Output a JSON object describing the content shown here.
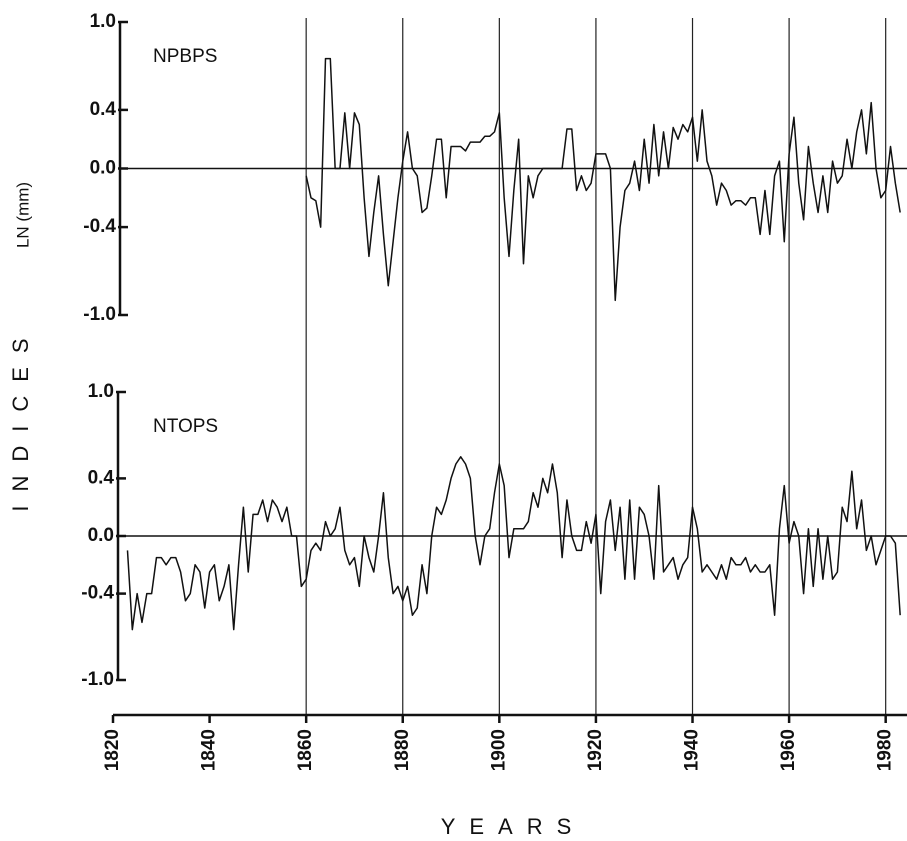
{
  "chart_data": [
    {
      "type": "line",
      "label": "NPBPS",
      "y_label": "LN (mm)",
      "xlim": [
        1820,
        1984
      ],
      "ylim": [
        -1,
        1
      ],
      "yticks": [
        {
          "value": -1,
          "label": "-1.0"
        },
        -0.4,
        {
          "value": 0,
          "label": "0.0"
        },
        0.4,
        {
          "value": 1,
          "label": "1.0"
        }
      ],
      "vlines": [
        1860,
        1880,
        1900,
        1920,
        1940,
        1960,
        1980
      ],
      "zero_line": true,
      "series": [
        {
          "name": "NPBPS",
          "color": "#111111",
          "x": [
            1860,
            1861,
            1862,
            1863,
            1864,
            1865,
            1866,
            1867,
            1868,
            1869,
            1870,
            1871,
            1872,
            1873,
            1874,
            1875,
            1876,
            1877,
            1878,
            1879,
            1880,
            1881,
            1882,
            1883,
            1884,
            1885,
            1886,
            1887,
            1888,
            1889,
            1890,
            1891,
            1892,
            1893,
            1894,
            1895,
            1896,
            1897,
            1898,
            1899,
            1900,
            1901,
            1902,
            1903,
            1904,
            1905,
            1906,
            1907,
            1908,
            1909,
            1910,
            1911,
            1912,
            1913,
            1914,
            1915,
            1916,
            1917,
            1918,
            1919,
            1920,
            1921,
            1922,
            1923,
            1924,
            1925,
            1926,
            1927,
            1928,
            1929,
            1930,
            1931,
            1932,
            1933,
            1934,
            1935,
            1936,
            1937,
            1938,
            1939,
            1940,
            1941,
            1942,
            1943,
            1944,
            1945,
            1946,
            1947,
            1948,
            1949,
            1950,
            1951,
            1952,
            1953,
            1954,
            1955,
            1956,
            1957,
            1958,
            1959,
            1960,
            1961,
            1962,
            1963,
            1964,
            1965,
            1966,
            1967,
            1968,
            1969,
            1970,
            1971,
            1972,
            1973,
            1974,
            1975,
            1976,
            1977,
            1978,
            1979,
            1980,
            1981,
            1982,
            1983
          ],
          "values": [
            -0.05,
            -0.2,
            -0.22,
            -0.4,
            0.75,
            0.75,
            0.0,
            0.0,
            0.38,
            0.0,
            0.38,
            0.3,
            -0.2,
            -0.6,
            -0.3,
            -0.05,
            -0.45,
            -0.8,
            -0.5,
            -0.2,
            0.05,
            0.25,
            0.0,
            -0.05,
            -0.3,
            -0.27,
            -0.05,
            0.2,
            0.2,
            -0.2,
            0.15,
            0.15,
            0.15,
            0.12,
            0.18,
            0.18,
            0.18,
            0.22,
            0.22,
            0.25,
            0.38,
            -0.2,
            -0.6,
            -0.15,
            0.2,
            -0.65,
            -0.05,
            -0.2,
            -0.05,
            0.0,
            0.0,
            0.0,
            0.0,
            0.0,
            0.27,
            0.27,
            -0.15,
            -0.05,
            -0.15,
            -0.1,
            0.1,
            0.1,
            0.1,
            0.0,
            -0.9,
            -0.4,
            -0.15,
            -0.1,
            0.05,
            -0.15,
            0.2,
            -0.1,
            0.3,
            -0.05,
            0.25,
            0.0,
            0.28,
            0.2,
            0.3,
            0.25,
            0.35,
            0.05,
            0.4,
            0.05,
            -0.05,
            -0.25,
            -0.1,
            -0.15,
            -0.25,
            -0.22,
            -0.22,
            -0.25,
            -0.2,
            -0.2,
            -0.45,
            -0.15,
            -0.45,
            -0.05,
            0.05,
            -0.5,
            0.1,
            0.35,
            -0.1,
            -0.35,
            0.15,
            -0.1,
            -0.3,
            -0.05,
            -0.3,
            0.05,
            -0.1,
            -0.05,
            0.2,
            0.0,
            0.25,
            0.4,
            0.1,
            0.45,
            0.0,
            -0.2,
            -0.15,
            0.15,
            -0.1,
            -0.3
          ]
        }
      ]
    },
    {
      "type": "line",
      "label": "NTOPS",
      "y_label": "INDICES",
      "x_label": "YEARS",
      "xlim": [
        1820,
        1984
      ],
      "ylim": [
        -1,
        1
      ],
      "xticks": [
        1820,
        1840,
        1860,
        1880,
        1900,
        1920,
        1940,
        1960,
        1980
      ],
      "yticks": [
        {
          "value": -1,
          "label": "-1.0"
        },
        -0.4,
        {
          "value": 0,
          "label": "0.0"
        },
        0.4,
        {
          "value": 1,
          "label": "1.0"
        }
      ],
      "zero_line": true,
      "series": [
        {
          "name": "NTOPS",
          "color": "#111111",
          "x": [
            1823,
            1824,
            1825,
            1826,
            1827,
            1828,
            1829,
            1830,
            1831,
            1832,
            1833,
            1834,
            1835,
            1836,
            1837,
            1838,
            1839,
            1840,
            1841,
            1842,
            1843,
            1844,
            1845,
            1846,
            1847,
            1848,
            1849,
            1850,
            1851,
            1852,
            1853,
            1854,
            1855,
            1856,
            1857,
            1858,
            1859,
            1860,
            1861,
            1862,
            1863,
            1864,
            1865,
            1866,
            1867,
            1868,
            1869,
            1870,
            1871,
            1872,
            1873,
            1874,
            1875,
            1876,
            1877,
            1878,
            1879,
            1880,
            1881,
            1882,
            1883,
            1884,
            1885,
            1886,
            1887,
            1888,
            1889,
            1890,
            1891,
            1892,
            1893,
            1894,
            1895,
            1896,
            1897,
            1898,
            1899,
            1900,
            1901,
            1902,
            1903,
            1904,
            1905,
            1906,
            1907,
            1908,
            1909,
            1910,
            1911,
            1912,
            1913,
            1914,
            1915,
            1916,
            1917,
            1918,
            1919,
            1920,
            1921,
            1922,
            1923,
            1924,
            1925,
            1926,
            1927,
            1928,
            1929,
            1930,
            1931,
            1932,
            1933,
            1934,
            1935,
            1936,
            1937,
            1938,
            1939,
            1940,
            1941,
            1942,
            1943,
            1944,
            1945,
            1946,
            1947,
            1948,
            1949,
            1950,
            1951,
            1952,
            1953,
            1954,
            1955,
            1956,
            1957,
            1958,
            1959,
            1960,
            1961,
            1962,
            1963,
            1964,
            1965,
            1966,
            1967,
            1968,
            1969,
            1970,
            1971,
            1972,
            1973,
            1974,
            1975,
            1976,
            1977,
            1978,
            1979,
            1980,
            1981,
            1982,
            1983
          ],
          "values": [
            -0.1,
            -0.65,
            -0.4,
            -0.6,
            -0.4,
            -0.4,
            -0.15,
            -0.15,
            -0.2,
            -0.15,
            -0.15,
            -0.25,
            -0.45,
            -0.4,
            -0.2,
            -0.25,
            -0.5,
            -0.25,
            -0.2,
            -0.45,
            -0.35,
            -0.2,
            -0.65,
            -0.2,
            0.2,
            -0.25,
            0.15,
            0.15,
            0.25,
            0.1,
            0.25,
            0.2,
            0.1,
            0.2,
            0.0,
            0.0,
            -0.35,
            -0.3,
            -0.1,
            -0.05,
            -0.1,
            0.1,
            0.0,
            0.05,
            0.2,
            -0.1,
            -0.2,
            -0.15,
            -0.35,
            0.0,
            -0.15,
            -0.25,
            0.0,
            0.3,
            -0.15,
            -0.4,
            -0.35,
            -0.45,
            -0.35,
            -0.55,
            -0.5,
            -0.2,
            -0.4,
            0.0,
            0.2,
            0.15,
            0.25,
            0.4,
            0.5,
            0.55,
            0.5,
            0.4,
            0.0,
            -0.2,
            0.0,
            0.05,
            0.3,
            0.5,
            0.35,
            -0.15,
            0.05,
            0.05,
            0.05,
            0.1,
            0.3,
            0.2,
            0.4,
            0.3,
            0.5,
            0.3,
            -0.15,
            0.25,
            0.0,
            -0.1,
            -0.1,
            0.1,
            -0.05,
            0.15,
            -0.4,
            0.1,
            0.25,
            -0.1,
            0.2,
            -0.3,
            0.25,
            -0.3,
            0.2,
            0.15,
            0.0,
            -0.3,
            0.35,
            -0.25,
            -0.2,
            -0.15,
            -0.3,
            -0.2,
            -0.15,
            0.2,
            0.05,
            -0.25,
            -0.2,
            -0.25,
            -0.3,
            -0.2,
            -0.3,
            -0.15,
            -0.2,
            -0.2,
            -0.15,
            -0.25,
            -0.2,
            -0.25,
            -0.25,
            -0.2,
            -0.55,
            0.05,
            0.35,
            -0.05,
            0.1,
            0.0,
            -0.4,
            0.05,
            -0.35,
            0.05,
            -0.3,
            0.0,
            -0.3,
            -0.25,
            0.2,
            0.1,
            0.45,
            0.05,
            0.25,
            -0.1,
            0.0,
            -0.2,
            -0.1,
            0.0,
            0.0,
            -0.05,
            -0.55
          ]
        }
      ]
    }
  ]
}
